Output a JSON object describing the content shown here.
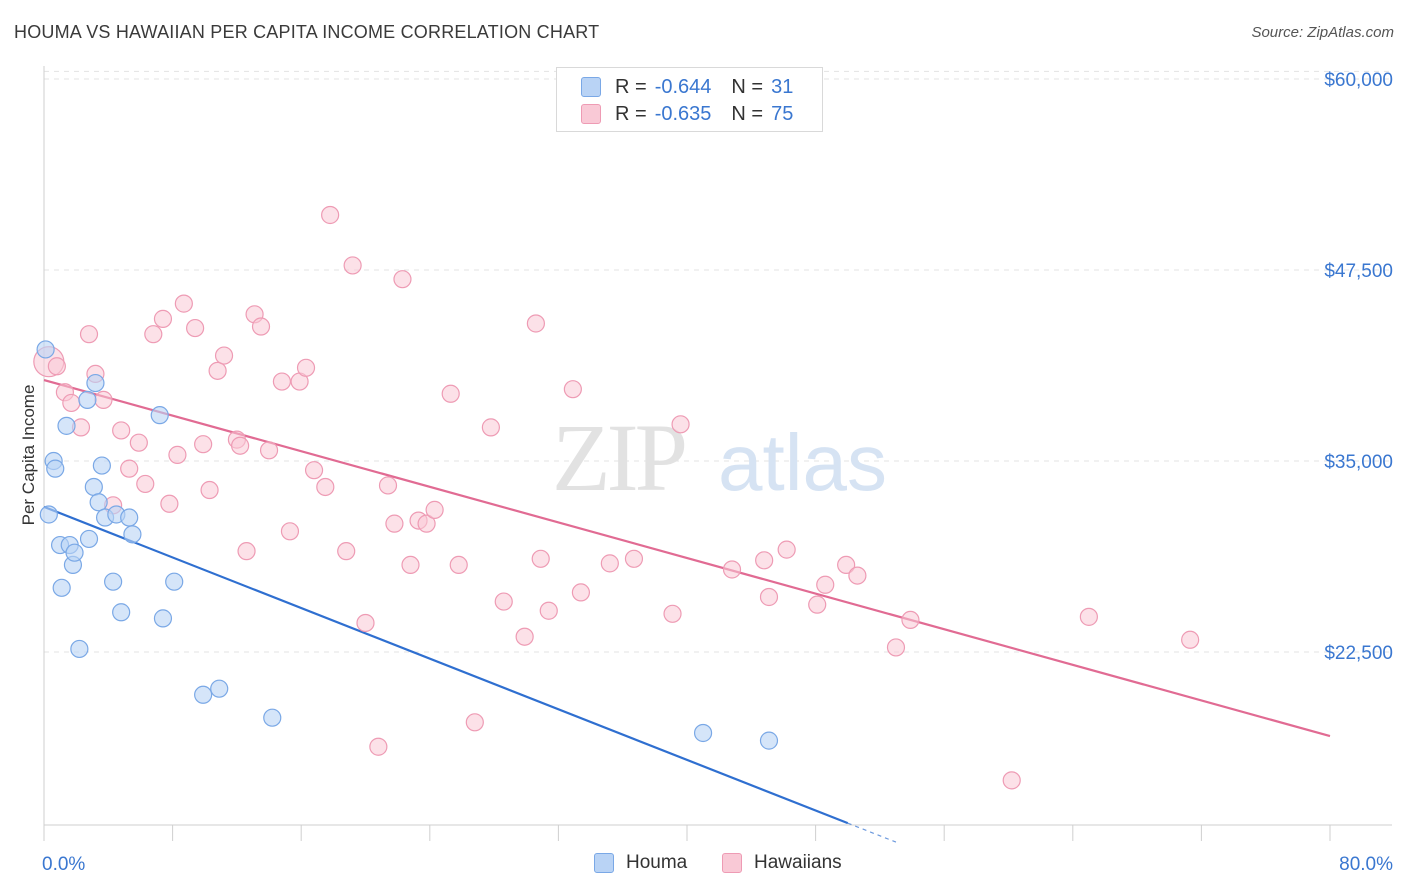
{
  "title": "HOUMA VS HAWAIIAN PER CAPITA INCOME CORRELATION CHART",
  "source": "Source: ZipAtlas.com",
  "watermark": {
    "zip": "ZIP",
    "atlas": "atlas"
  },
  "legend": {
    "rows": [
      {
        "r_label": "R = ",
        "r_value": "-0.644",
        "n_label": "N = ",
        "n_value": "31"
      },
      {
        "r_label": "R = ",
        "r_value": "-0.635",
        "n_label": "N = ",
        "n_value": "75"
      }
    ]
  },
  "bottom_legend": {
    "houma": "Houma",
    "hawaiians": "Hawaiians"
  },
  "colors": {
    "houma_fill": "#b9d3f5",
    "houma_stroke": "#7aa8e6",
    "houma_line": "#2f6fd0",
    "hawaiian_fill": "#f9c9d6",
    "hawaiian_stroke": "#ee9bb4",
    "hawaiian_line": "#e16b93",
    "axis_text": "#3a77d0",
    "grid": "#e3e3e3"
  },
  "chart_data": {
    "type": "scatter",
    "title": "HOUMA VS HAWAIIAN PER CAPITA INCOME CORRELATION CHART",
    "xlabel": "",
    "ylabel": "Per Capita Income",
    "xlim": [
      0,
      80
    ],
    "ylim": [
      10000,
      61000
    ],
    "x_tick_labels": [
      "0.0%",
      "80.0%"
    ],
    "y_ticks": [
      22500,
      35000,
      47500,
      60000
    ],
    "y_tick_labels": [
      "$22,500",
      "$35,000",
      "$47,500",
      "$60,000"
    ],
    "series": [
      {
        "name": "Houma",
        "r": -0.644,
        "n": 31,
        "trend": {
          "x0": 0,
          "y0": 32000,
          "x1": 50,
          "y1": 11300,
          "dash_to_x": 53
        },
        "points": [
          [
            0.1,
            42300
          ],
          [
            0.3,
            31500
          ],
          [
            0.6,
            35000
          ],
          [
            0.7,
            34500
          ],
          [
            1.0,
            29500
          ],
          [
            1.1,
            26700
          ],
          [
            1.4,
            37300
          ],
          [
            1.6,
            29500
          ],
          [
            1.8,
            28200
          ],
          [
            1.9,
            29000
          ],
          [
            2.2,
            22700
          ],
          [
            2.7,
            39000
          ],
          [
            2.8,
            29900
          ],
          [
            3.1,
            33300
          ],
          [
            3.2,
            40100
          ],
          [
            3.4,
            32300
          ],
          [
            3.6,
            34700
          ],
          [
            3.8,
            31300
          ],
          [
            4.3,
            27100
          ],
          [
            4.5,
            31500
          ],
          [
            4.8,
            25100
          ],
          [
            5.3,
            31300
          ],
          [
            5.5,
            30200
          ],
          [
            7.2,
            38000
          ],
          [
            7.4,
            24700
          ],
          [
            8.1,
            27100
          ],
          [
            9.9,
            19700
          ],
          [
            10.9,
            20100
          ],
          [
            14.2,
            18200
          ],
          [
            41.0,
            17200
          ],
          [
            45.1,
            16700
          ]
        ]
      },
      {
        "name": "Hawaiians",
        "r": -0.635,
        "n": 75,
        "trend": {
          "x0": 0,
          "y0": 40300,
          "x1": 80,
          "y1": 17000
        },
        "points": [
          [
            0.3,
            41500
          ],
          [
            0.8,
            41200
          ],
          [
            1.3,
            39500
          ],
          [
            1.7,
            38800
          ],
          [
            2.3,
            37200
          ],
          [
            2.8,
            43300
          ],
          [
            3.2,
            40700
          ],
          [
            3.7,
            39000
          ],
          [
            4.3,
            32100
          ],
          [
            4.8,
            37000
          ],
          [
            5.3,
            34500
          ],
          [
            5.9,
            36200
          ],
          [
            6.3,
            33500
          ],
          [
            6.8,
            43300
          ],
          [
            7.4,
            44300
          ],
          [
            7.8,
            32200
          ],
          [
            8.3,
            35400
          ],
          [
            8.7,
            45300
          ],
          [
            9.4,
            43700
          ],
          [
            9.9,
            36100
          ],
          [
            10.3,
            33100
          ],
          [
            10.8,
            40900
          ],
          [
            11.2,
            41900
          ],
          [
            12.0,
            36400
          ],
          [
            12.2,
            36000
          ],
          [
            12.6,
            29100
          ],
          [
            13.1,
            44600
          ],
          [
            13.5,
            43800
          ],
          [
            14.0,
            35700
          ],
          [
            14.8,
            40200
          ],
          [
            15.3,
            30400
          ],
          [
            15.9,
            40200
          ],
          [
            16.3,
            41100
          ],
          [
            16.8,
            34400
          ],
          [
            17.5,
            33300
          ],
          [
            17.8,
            51100
          ],
          [
            18.8,
            29100
          ],
          [
            19.2,
            47800
          ],
          [
            20.0,
            24400
          ],
          [
            20.8,
            16300
          ],
          [
            21.4,
            33400
          ],
          [
            21.8,
            30900
          ],
          [
            22.3,
            46900
          ],
          [
            22.8,
            28200
          ],
          [
            23.3,
            31100
          ],
          [
            23.8,
            30900
          ],
          [
            24.3,
            31800
          ],
          [
            25.3,
            39400
          ],
          [
            25.8,
            28200
          ],
          [
            26.8,
            17900
          ],
          [
            27.8,
            37200
          ],
          [
            28.6,
            25800
          ],
          [
            29.9,
            23500
          ],
          [
            30.6,
            44000
          ],
          [
            30.9,
            28600
          ],
          [
            31.4,
            25200
          ],
          [
            32.9,
            39700
          ],
          [
            33.4,
            26400
          ],
          [
            35.2,
            28300
          ],
          [
            36.7,
            28600
          ],
          [
            39.1,
            25000
          ],
          [
            39.6,
            37400
          ],
          [
            42.8,
            27900
          ],
          [
            44.8,
            28500
          ],
          [
            45.1,
            26100
          ],
          [
            46.2,
            29200
          ],
          [
            48.1,
            25600
          ],
          [
            48.6,
            26900
          ],
          [
            49.9,
            28200
          ],
          [
            50.6,
            27500
          ],
          [
            53.0,
            22800
          ],
          [
            53.9,
            24600
          ],
          [
            60.2,
            14100
          ],
          [
            65.0,
            24800
          ],
          [
            71.3,
            23300
          ]
        ]
      }
    ]
  }
}
